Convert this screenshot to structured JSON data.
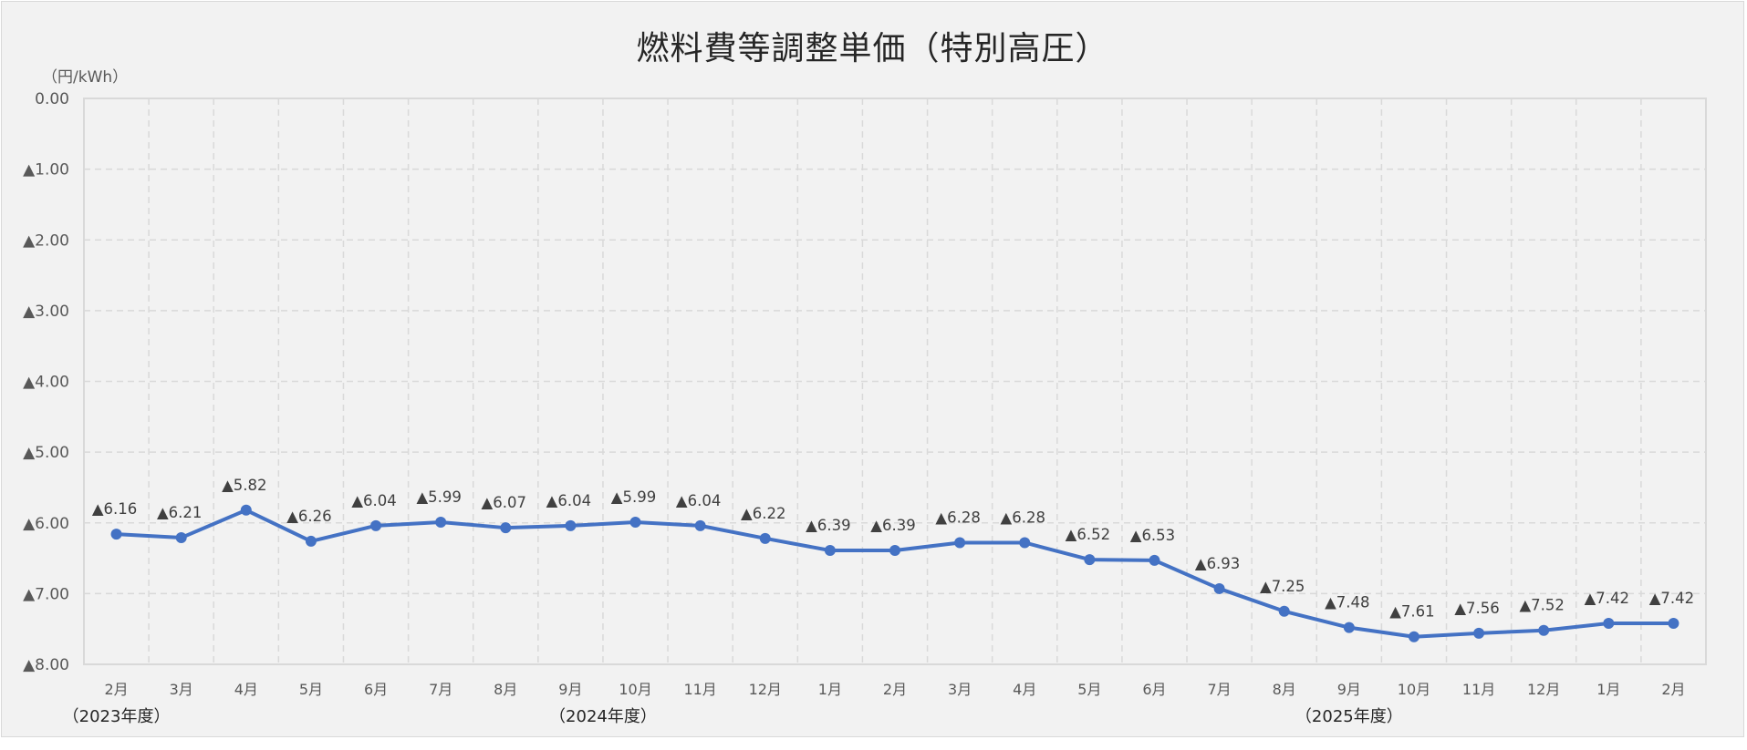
{
  "chart_data": {
    "type": "line",
    "title": "燃料費等調整単価（特別高圧）",
    "ylabel": "（円/kWh）",
    "xlabel": "",
    "ylim": [
      0,
      -8
    ],
    "y_ticks": [
      "0.00",
      "▲1.00",
      "▲2.00",
      "▲3.00",
      "▲4.00",
      "▲5.00",
      "▲6.00",
      "▲7.00",
      "▲8.00"
    ],
    "grid": true,
    "legend": null,
    "categories": [
      "2月",
      "3月",
      "4月",
      "5月",
      "6月",
      "7月",
      "8月",
      "9月",
      "10月",
      "11月",
      "12月",
      "1月",
      "2月",
      "3月",
      "4月",
      "5月",
      "6月",
      "7月",
      "8月",
      "9月",
      "10月",
      "11月",
      "12月",
      "1月",
      "2月"
    ],
    "fiscal_year_labels": [
      {
        "label": "（2023年度）",
        "at_index": 0
      },
      {
        "label": "（2024年度）",
        "at_index": 7.5
      },
      {
        "label": "（2025年度）",
        "at_index": 19
      }
    ],
    "series": [
      {
        "name": "燃料費等調整単価",
        "color": "#4472C4",
        "values": [
          -6.16,
          -6.21,
          -5.82,
          -6.26,
          -6.04,
          -5.99,
          -6.07,
          -6.04,
          -5.99,
          -6.04,
          -6.22,
          -6.39,
          -6.39,
          -6.28,
          -6.28,
          -6.52,
          -6.53,
          -6.93,
          -7.25,
          -7.48,
          -7.61,
          -7.56,
          -7.52,
          -7.42,
          -7.42
        ],
        "data_labels": [
          "▲6.16",
          "▲6.21",
          "▲5.82",
          "▲6.26",
          "▲6.04",
          "▲5.99",
          "▲6.07",
          "▲6.04",
          "▲5.99",
          "▲6.04",
          "▲6.22",
          "▲6.39",
          "▲6.39",
          "▲6.28",
          "▲6.28",
          "▲6.52",
          "▲6.53",
          "▲6.93",
          "▲7.25",
          "▲7.48",
          "▲7.61",
          "▲7.56",
          "▲7.52",
          "▲7.42",
          "▲7.42"
        ]
      }
    ]
  },
  "colors": {
    "background": "#f2f2f2",
    "border": "#d9d9d9",
    "gridline": "#d9d9d9",
    "line": "#4472C4",
    "text": "#595959"
  }
}
